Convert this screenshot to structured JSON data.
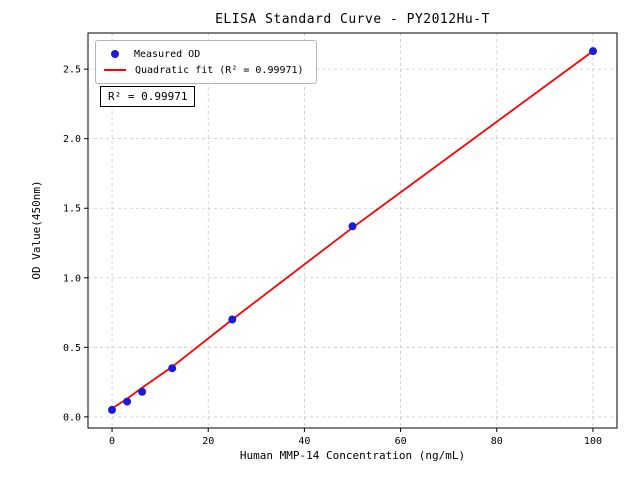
{
  "chart_data": {
    "type": "scatter",
    "title": "ELISA Standard Curve - PY2012Hu-T",
    "xlabel": "Human MMP-14 Concentration (ng/mL)",
    "ylabel": "OD Value(450nm)",
    "annotation": "R² = 0.99971",
    "xlim": [
      -5,
      105
    ],
    "ylim": [
      -0.08,
      2.76
    ],
    "xticks": [
      0,
      20,
      40,
      60,
      80,
      100
    ],
    "yticks": [
      0,
      0.5,
      1,
      1.5,
      2,
      2.5
    ],
    "xticklabels": [
      "0",
      "20",
      "40",
      "60",
      "80",
      "100"
    ],
    "yticklabels": [
      "0.0",
      "0.5",
      "1.0",
      "1.5",
      "2.0",
      "2.5"
    ],
    "grid": true,
    "legend": {
      "position": "upper-left",
      "entries": [
        {
          "label": "Measured OD",
          "marker": "dot",
          "color": "#1a1ad9"
        },
        {
          "label": "Quadratic fit (R² = 0.99971)",
          "marker": "line",
          "color": "#ff0000"
        }
      ]
    },
    "series": [
      {
        "name": "Quadratic fit",
        "type": "line",
        "color": "#ff0000",
        "x": [
          0,
          3.125,
          6.25,
          12.5,
          25,
          50,
          100
        ],
        "y": [
          0.06,
          0.13,
          0.21,
          0.36,
          0.7,
          1.36,
          2.63
        ]
      },
      {
        "name": "Measured OD",
        "type": "scatter",
        "color": "#1a1ad9",
        "x": [
          0,
          3.125,
          6.25,
          12.5,
          25,
          50,
          100
        ],
        "y": [
          0.05,
          0.11,
          0.18,
          0.35,
          0.7,
          1.37,
          2.63
        ]
      }
    ]
  }
}
